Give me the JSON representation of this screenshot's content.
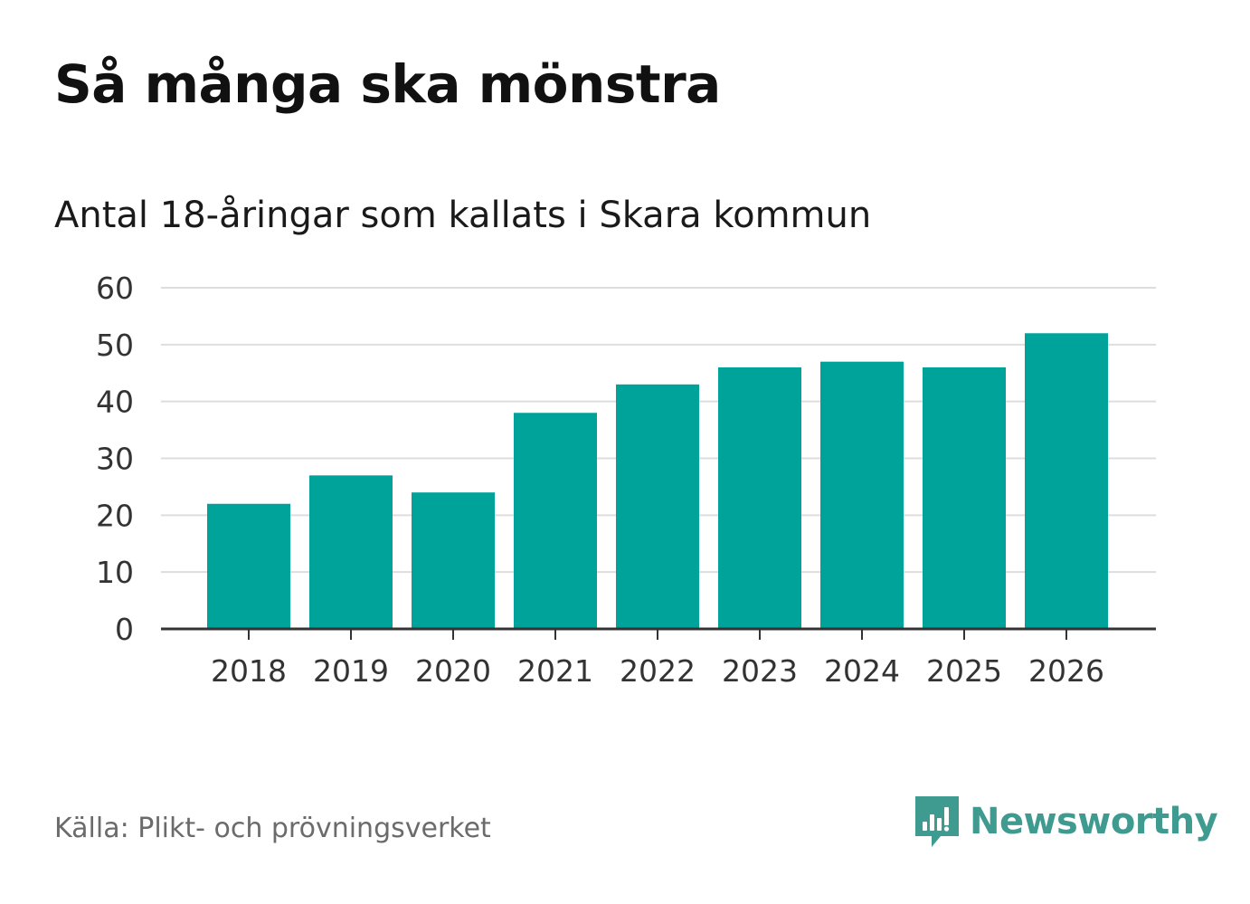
{
  "title": "Så många ska mönstra",
  "subtitle": "Antal 18-åringar som kallats i Skara kommun",
  "source": "Källa: Plikt- och prövningsverket",
  "brand": {
    "name": "Newsworthy",
    "icon": "newsworthy-logo-icon",
    "color": "#3f9a8f"
  },
  "colors": {
    "bar": "#00a39a",
    "grid": "#dddddd",
    "axis": "#333333"
  },
  "chart_data": {
    "type": "bar",
    "title": "Så många ska mönstra",
    "subtitle": "Antal 18-åringar som kallats i Skara kommun",
    "xlabel": "",
    "ylabel": "",
    "categories": [
      "2018",
      "2019",
      "2020",
      "2021",
      "2022",
      "2023",
      "2024",
      "2025",
      "2026"
    ],
    "values": [
      22,
      27,
      24,
      38,
      43,
      46,
      47,
      46,
      52
    ],
    "ylim": [
      0,
      60
    ],
    "yticks": [
      0,
      10,
      20,
      30,
      40,
      50,
      60
    ],
    "grid": true,
    "legend": "none"
  }
}
